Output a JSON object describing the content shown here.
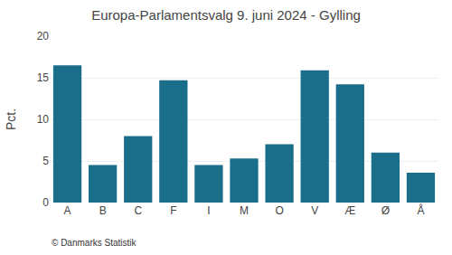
{
  "chart_data": {
    "type": "bar",
    "title": "Europa-Parlamentsvalg 9. juni 2024 - Gylling",
    "categories": [
      "A",
      "B",
      "C",
      "F",
      "I",
      "M",
      "O",
      "V",
      "Æ",
      "Ø",
      "Å"
    ],
    "values": [
      16.5,
      4.5,
      8.0,
      14.7,
      4.5,
      5.3,
      7.0,
      15.9,
      14.2,
      6.0,
      3.6
    ],
    "color": "#1a6e8a",
    "ylabel": "Pct.",
    "ylim": [
      0,
      20
    ],
    "yticks": [
      0,
      5,
      10,
      15,
      20
    ],
    "grid": true,
    "annotations": [
      "© Danmarks Statistik"
    ]
  }
}
